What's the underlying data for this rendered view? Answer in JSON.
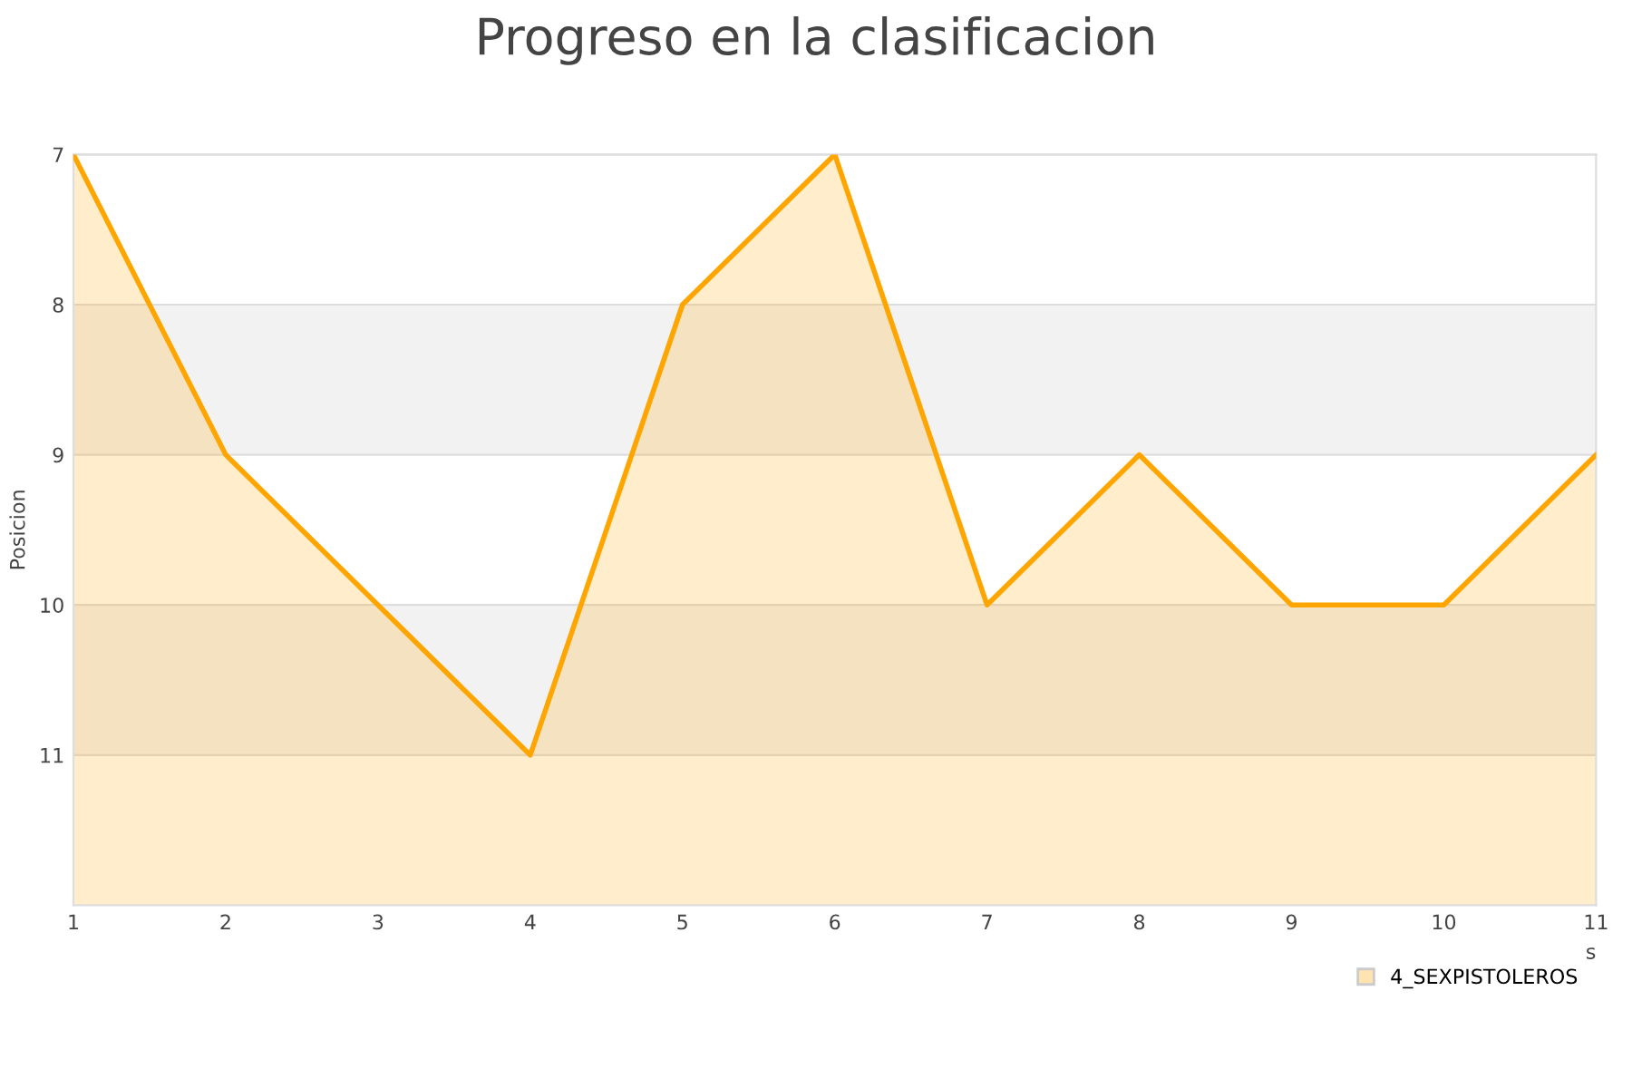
{
  "chart_data": {
    "type": "area",
    "title": "Progreso en la clasificacion",
    "xlabel": "s",
    "ylabel": "Posicion",
    "x": [
      1,
      2,
      3,
      4,
      5,
      6,
      7,
      8,
      9,
      10,
      11
    ],
    "series": [
      {
        "name": "4_SEXPISTOLEROS",
        "color": "#ffa500",
        "values": [
          7,
          9,
          10,
          11,
          8,
          7,
          10,
          9,
          10,
          10,
          9
        ]
      }
    ],
    "xlim": [
      1,
      11
    ],
    "xticks": [
      1,
      2,
      3,
      4,
      5,
      6,
      7,
      8,
      9,
      10,
      11
    ],
    "ylim": [
      12,
      7
    ],
    "yticks": [
      7,
      8,
      9,
      10,
      11
    ],
    "bands": [
      {
        "axis": "y",
        "from": 8,
        "to": 9,
        "color": "#f2f2f2"
      },
      {
        "axis": "y",
        "from": 10,
        "to": 11,
        "color": "#f2f2f2"
      }
    ],
    "grid": "y",
    "legend": "bottom right",
    "marker": "none",
    "line_style": "solid"
  }
}
